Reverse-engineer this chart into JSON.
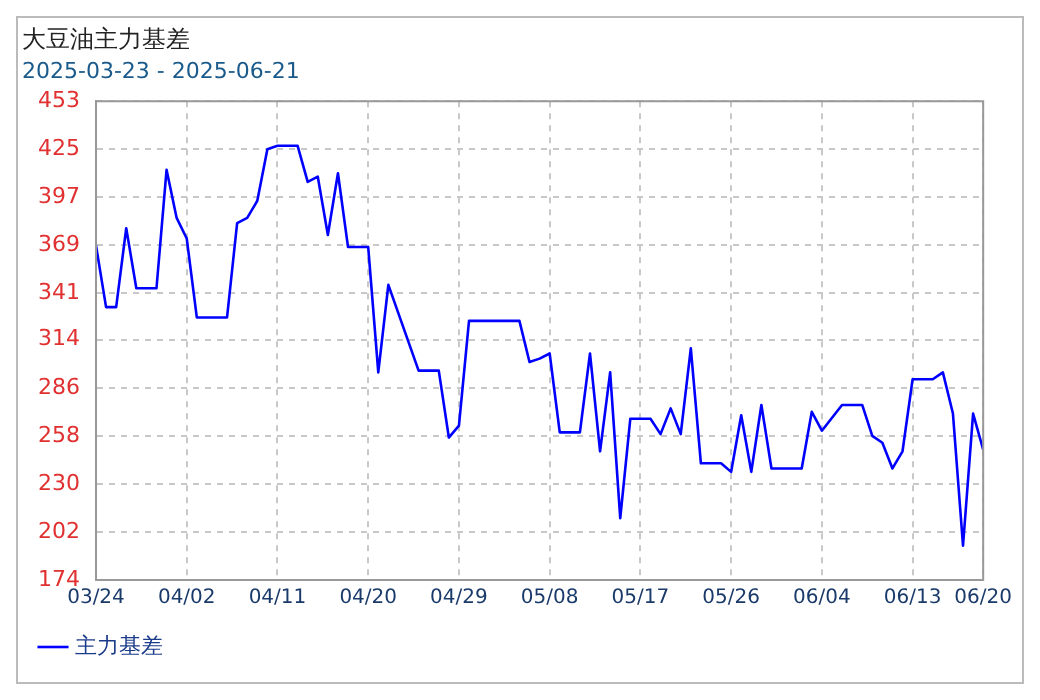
{
  "chart_data": {
    "type": "line",
    "title": "大豆油主力基差",
    "subtitle": "2025-03-23 - 2025-06-21",
    "x": [
      "2025-03-24",
      "2025-03-25",
      "2025-03-26",
      "2025-03-27",
      "2025-03-28",
      "2025-03-30",
      "2025-03-31",
      "2025-04-01",
      "2025-04-02",
      "2025-04-03",
      "2025-04-06",
      "2025-04-07",
      "2025-04-08",
      "2025-04-09",
      "2025-04-10",
      "2025-04-11",
      "2025-04-13",
      "2025-04-14",
      "2025-04-15",
      "2025-04-16",
      "2025-04-17",
      "2025-04-18",
      "2025-04-20",
      "2025-04-21",
      "2025-04-22",
      "2025-04-25",
      "2025-04-27",
      "2025-04-28",
      "2025-04-29",
      "2025-04-30",
      "2025-05-05",
      "2025-05-06",
      "2025-05-07",
      "2025-05-08",
      "2025-05-09",
      "2025-05-11",
      "2025-05-12",
      "2025-05-13",
      "2025-05-14",
      "2025-05-15",
      "2025-05-16",
      "2025-05-18",
      "2025-05-19",
      "2025-05-20",
      "2025-05-21",
      "2025-05-22",
      "2025-05-23",
      "2025-05-25",
      "2025-05-26",
      "2025-05-27",
      "2025-05-28",
      "2025-05-29",
      "2025-05-30",
      "2025-06-02",
      "2025-06-03",
      "2025-06-04",
      "2025-06-06",
      "2025-06-08",
      "2025-06-09",
      "2025-06-10",
      "2025-06-11",
      "2025-06-12",
      "2025-06-13",
      "2025-06-15",
      "2025-06-16",
      "2025-06-17",
      "2025-06-18",
      "2025-06-19",
      "2025-06-20"
    ],
    "series": [
      {
        "name": "主力基差",
        "color": "#0000ff",
        "values": [
          369,
          333,
          333,
          379,
          344,
          344,
          413,
          385,
          373,
          327,
          327,
          382,
          385,
          395,
          425,
          427,
          427,
          406,
          409,
          375,
          411,
          368,
          368,
          295,
          346,
          296,
          296,
          257,
          264,
          325,
          325,
          301,
          303,
          306,
          260,
          260,
          306,
          249,
          295,
          210,
          268,
          268,
          259,
          274,
          259,
          309,
          242,
          242,
          237,
          270,
          237,
          276,
          239,
          239,
          272,
          261,
          276,
          276,
          258,
          254,
          239,
          249,
          291,
          291,
          295,
          271,
          194,
          271,
          250
        ]
      }
    ],
    "ylim": [
      174,
      453
    ],
    "yticks": [
      174,
      202,
      230,
      258,
      286,
      314,
      341,
      369,
      397,
      425,
      453
    ],
    "xlim": [
      "2025-03-24",
      "2025-06-20"
    ],
    "xticks": [
      {
        "value": "2025-03-24",
        "label": "03/24"
      },
      {
        "value": "2025-04-02",
        "label": "04/02"
      },
      {
        "value": "2025-04-11",
        "label": "04/11"
      },
      {
        "value": "2025-04-20",
        "label": "04/20"
      },
      {
        "value": "2025-04-29",
        "label": "04/29"
      },
      {
        "value": "2025-05-08",
        "label": "05/08"
      },
      {
        "value": "2025-05-17",
        "label": "05/17"
      },
      {
        "value": "2025-05-26",
        "label": "05/26"
      },
      {
        "value": "2025-06-04",
        "label": "06/04"
      },
      {
        "value": "2025-06-13",
        "label": "06/13"
      },
      {
        "value": "2025-06-20",
        "label": "06/20"
      }
    ],
    "grid": true,
    "legend": "bottom left",
    "marker": "none",
    "line_style": "solid"
  }
}
